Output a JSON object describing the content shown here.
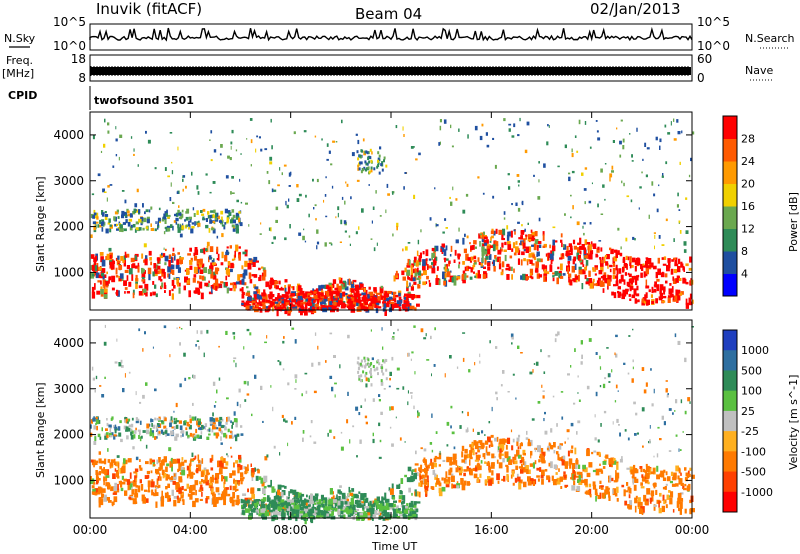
{
  "header": {
    "station": "Inuvik (fitACF)",
    "beam": "Beam 04",
    "date": "02/Jan/2013"
  },
  "side_labels": {
    "nsky": "N.Sky",
    "freq_line1": "Freq.",
    "freq_line2": "[MHz]",
    "cpid": "CPID",
    "nsearch": "N.Search",
    "nave": "Nave"
  },
  "cpid_value": "twofsound 3501",
  "colors": {
    "power_scale": [
      "#0000ff",
      "#1f4fa0",
      "#2e8b57",
      "#6aa84f",
      "#f0d000",
      "#ff9a00",
      "#ff5a00",
      "#ff0000"
    ],
    "velocity_scale": [
      "#1f3fbf",
      "#2e6fa0",
      "#2e8b57",
      "#5ac040",
      "#c0c0c0",
      "#ffb020",
      "#ff7a00",
      "#ff4000",
      "#ff0000"
    ]
  },
  "chart_data": [
    {
      "type": "line",
      "panel": "N.Sky / N.Search",
      "left_ticks": [
        "10^5",
        "10^0"
      ],
      "right_ticks": [
        "10^5",
        "10^0"
      ],
      "scale": "log",
      "ylim": [
        1,
        100000
      ]
    },
    {
      "type": "line",
      "panel": "Freq / Nave",
      "left_ticks": [
        "18",
        "8"
      ],
      "right_ticks": [
        "60",
        "0"
      ],
      "ylim_left": [
        8,
        18
      ],
      "ylim_right": [
        0,
        60
      ]
    },
    {
      "type": "heatmap",
      "panel": "Power",
      "ylabel": "Slant Range [km]",
      "xlabel": "",
      "xlim": [
        0,
        24
      ],
      "ylim": [
        180,
        4500
      ],
      "y_ticks": [
        "1000",
        "2000",
        "3000",
        "4000"
      ],
      "colorbar_label": "Power [dB]",
      "colorbar_ticks": [
        "4",
        "8",
        "12",
        "16",
        "20",
        "24",
        "28"
      ],
      "colorbar_range": [
        0,
        32
      ]
    },
    {
      "type": "heatmap",
      "panel": "Velocity",
      "ylabel": "Slant Range [km]",
      "xlabel": "Time UT",
      "xlim": [
        0,
        24
      ],
      "x_ticks": [
        "00:00",
        "04:00",
        "08:00",
        "12:00",
        "16:00",
        "20:00",
        "00:00"
      ],
      "ylim": [
        180,
        4500
      ],
      "y_ticks": [
        "1000",
        "2000",
        "3000",
        "4000"
      ],
      "colorbar_label": "Velocity [m s^-1]",
      "colorbar_ticks": [
        "1000",
        "500",
        "100",
        "25",
        "-25",
        "-100",
        "-500",
        "-1000"
      ]
    }
  ]
}
